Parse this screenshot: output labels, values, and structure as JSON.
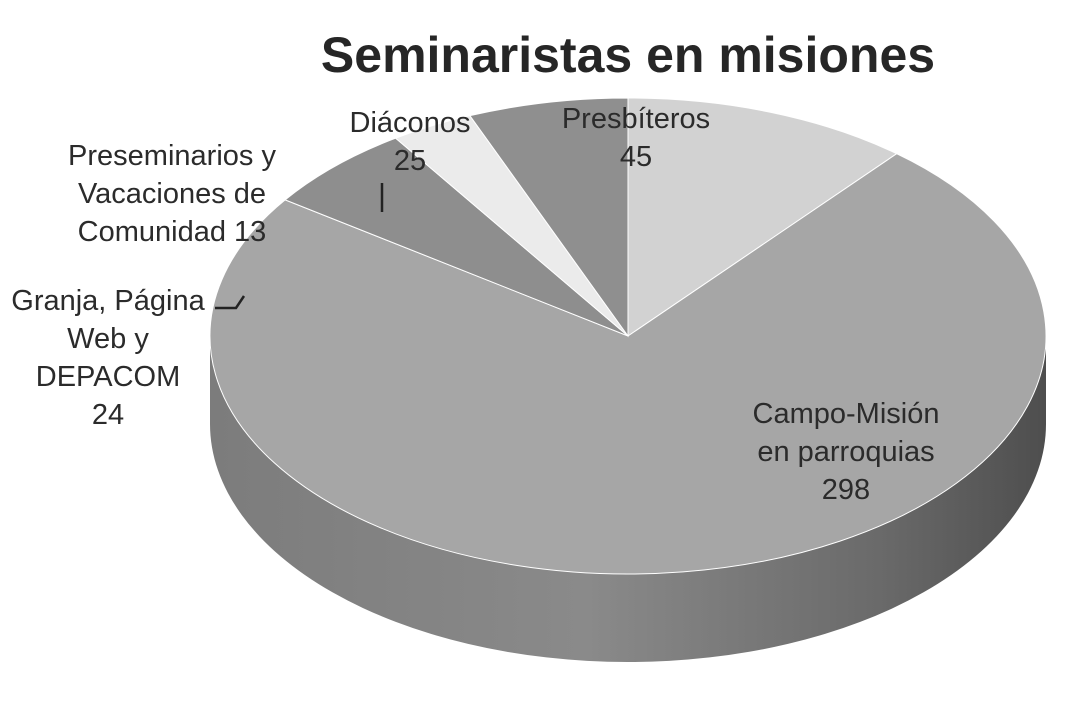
{
  "chart_data": {
    "type": "pie",
    "title": "Seminaristas en misiones",
    "three_d": true,
    "slices": [
      {
        "label_lines": [
          "Presbíteros",
          "45"
        ],
        "name": "Presbíteros",
        "value": 45,
        "color": "#d2d2d2"
      },
      {
        "label_lines": [
          "Campo-Misión",
          "en parroquias",
          "298"
        ],
        "name": "Campo-Misión en parroquias",
        "value": 298,
        "color": "#a6a6a6"
      },
      {
        "label_lines": [
          "Granja, Página",
          "Web y",
          "DEPACOM",
          "24"
        ],
        "name": "Granja, Página Web y DEPACOM",
        "value": 24,
        "color": "#8e8e8e"
      },
      {
        "label_lines": [
          "Preseminarios y",
          "Vacaciones de",
          "Comunidad 13"
        ],
        "name": "Preseminarios y Vacaciones de Comunidad",
        "value": 13,
        "color": "#ebebeb"
      },
      {
        "label_lines": [
          "Diáconos",
          "25"
        ],
        "name": "Diáconos",
        "value": 25,
        "color": "#8f8f8f"
      }
    ]
  }
}
